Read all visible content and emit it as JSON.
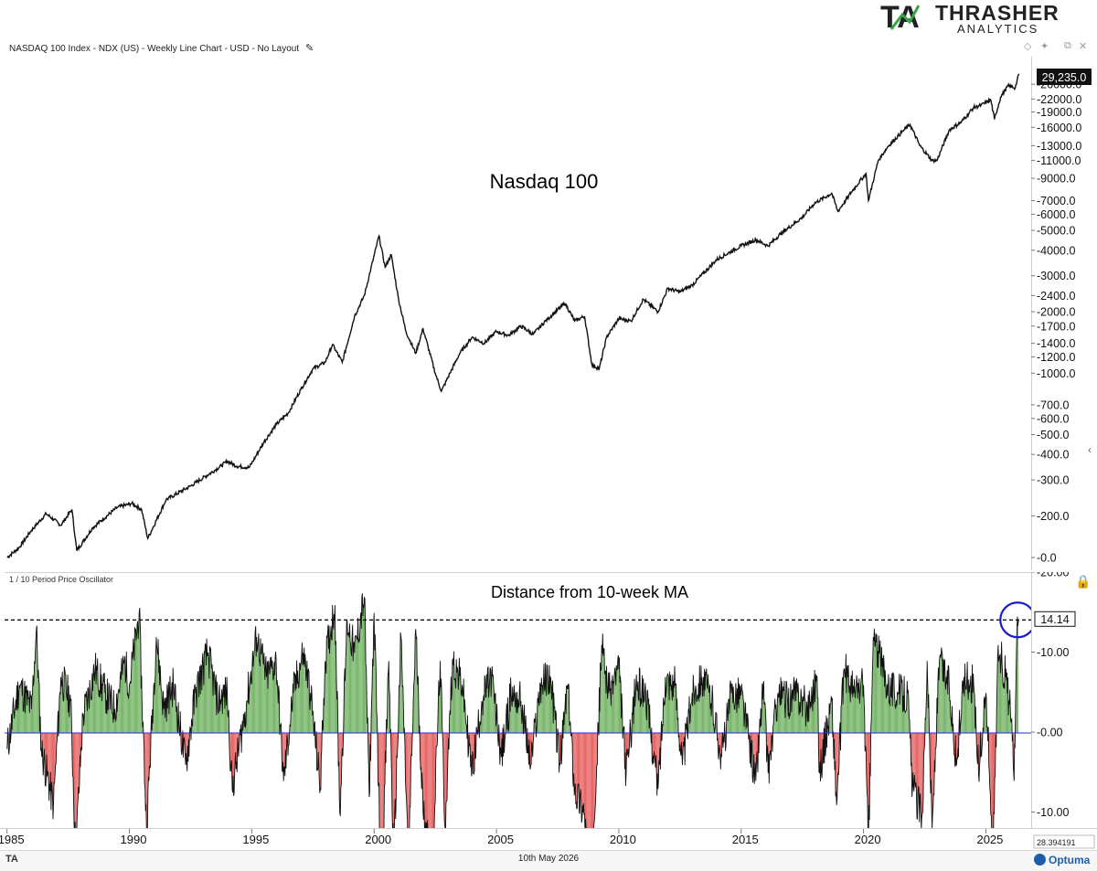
{
  "logo": {
    "mark": "TA",
    "name": "THRASHER",
    "sub": "ANALYTICS"
  },
  "header": {
    "title": "NASDAQ 100 Index - NDX (US) - Weekly Line Chart - USD - No Layout"
  },
  "osc_title": "1 / 10 Period Price Oscillator",
  "footer": {
    "date": "10th May 2026",
    "brand": "Optuma",
    "left_mark": "TA",
    "cursor_readout": "28.394191"
  },
  "chart_data": [
    {
      "type": "line",
      "title": "Nasdaq 100",
      "scale": "log",
      "last_value_label": "29,235.0",
      "y_tick_labels": [
        "26000.0",
        "22000.0",
        "19000.0",
        "16000.0",
        "13000.0",
        "11000.0",
        "9000.0",
        "7000.0",
        "6000.0",
        "5000.0",
        "4000.0",
        "3000.0",
        "2400.0",
        "2000.0",
        "1700.0",
        "1400.0",
        "1200.0",
        "1000.0",
        "700.0",
        "600.0",
        "500.0",
        "400.0",
        "300.0",
        "200.0",
        "-0.0"
      ],
      "x_tick_labels": [
        "1985",
        "1990",
        "1995",
        "2000",
        "2005",
        "2010",
        "2015",
        "2020",
        "2025"
      ],
      "series": [
        {
          "values": [
            [
              1985.0,
              125
            ],
            [
              1985.5,
              140
            ],
            [
              1986.0,
              170
            ],
            [
              1986.6,
              205
            ],
            [
              1987.2,
              180
            ],
            [
              1987.65,
              215
            ],
            [
              1987.85,
              135
            ],
            [
              1988.5,
              175
            ],
            [
              1989.5,
              220
            ],
            [
              1990.1,
              230
            ],
            [
              1990.5,
              215
            ],
            [
              1990.75,
              155
            ],
            [
              1991.5,
              240
            ],
            [
              1992.5,
              280
            ],
            [
              1993.5,
              335
            ],
            [
              1994.0,
              370
            ],
            [
              1994.4,
              350
            ],
            [
              1994.9,
              345
            ],
            [
              1995.5,
              460
            ],
            [
              1996.0,
              560
            ],
            [
              1996.5,
              640
            ],
            [
              1997.0,
              830
            ],
            [
              1997.5,
              1050
            ],
            [
              1998.0,
              1130
            ],
            [
              1998.3,
              1380
            ],
            [
              1998.7,
              1130
            ],
            [
              1999.2,
              1900
            ],
            [
              1999.6,
              2400
            ],
            [
              2000.2,
              4700
            ],
            [
              2000.45,
              3300
            ],
            [
              2000.7,
              3800
            ],
            [
              2001.0,
              2300
            ],
            [
              2001.3,
              1600
            ],
            [
              2001.7,
              1250
            ],
            [
              2002.0,
              1650
            ],
            [
              2002.5,
              1000
            ],
            [
              2002.75,
              815
            ],
            [
              2003.1,
              1000
            ],
            [
              2003.5,
              1250
            ],
            [
              2004.0,
              1500
            ],
            [
              2004.5,
              1400
            ],
            [
              2005.0,
              1600
            ],
            [
              2005.5,
              1530
            ],
            [
              2006.0,
              1700
            ],
            [
              2006.5,
              1550
            ],
            [
              2007.0,
              1800
            ],
            [
              2007.8,
              2200
            ],
            [
              2008.2,
              1800
            ],
            [
              2008.6,
              1900
            ],
            [
              2008.9,
              1100
            ],
            [
              2009.2,
              1050
            ],
            [
              2009.5,
              1500
            ],
            [
              2010.0,
              1850
            ],
            [
              2010.5,
              1800
            ],
            [
              2011.0,
              2300
            ],
            [
              2011.6,
              2000
            ],
            [
              2012.0,
              2600
            ],
            [
              2012.5,
              2500
            ],
            [
              2013.0,
              2700
            ],
            [
              2014.0,
              3600
            ],
            [
              2015.0,
              4200
            ],
            [
              2015.6,
              4500
            ],
            [
              2016.1,
              4200
            ],
            [
              2016.6,
              4800
            ],
            [
              2017.5,
              5800
            ],
            [
              2018.0,
              6800
            ],
            [
              2018.7,
              7600
            ],
            [
              2018.95,
              6200
            ],
            [
              2019.5,
              7700
            ],
            [
              2020.1,
              9500
            ],
            [
              2020.2,
              7000
            ],
            [
              2020.6,
              11000
            ],
            [
              2021.0,
              12900
            ],
            [
              2021.6,
              15300
            ],
            [
              2021.9,
              16500
            ],
            [
              2022.3,
              13000
            ],
            [
              2022.8,
              11000
            ],
            [
              2023.0,
              11000
            ],
            [
              2023.5,
              15500
            ],
            [
              2024.0,
              17000
            ],
            [
              2024.5,
              20000
            ],
            [
              2024.8,
              20500
            ],
            [
              2025.2,
              21800
            ],
            [
              2025.35,
              17500
            ],
            [
              2025.6,
              22500
            ],
            [
              2025.9,
              25500
            ],
            [
              2026.2,
              25000
            ],
            [
              2026.35,
              29235
            ]
          ]
        }
      ]
    },
    {
      "type": "area",
      "title": "Distance from 10-week MA",
      "ylim": [
        -12,
        20
      ],
      "reference_line": {
        "value": 14.14,
        "label": "14.14",
        "style": "dashed"
      },
      "zero_line": {
        "value": 0.0,
        "color": "#1f2fd6"
      },
      "y_tick_labels": [
        "20.00",
        "10.00",
        "0.00",
        "-10.00"
      ],
      "highlight": {
        "x": 2026.3,
        "y": 14.14,
        "shape": "circle",
        "color": "#1b1bcc"
      },
      "series": [
        {
          "positive_color": "#5fa84f",
          "negative_color": "#e34949",
          "values": [
            [
              1985.0,
              -2
            ],
            [
              1985.5,
              6
            ],
            [
              1986.0,
              3
            ],
            [
              1986.2,
              13
            ],
            [
              1986.4,
              -2
            ],
            [
              1986.9,
              -9
            ],
            [
              1987.2,
              7
            ],
            [
              1987.6,
              4
            ],
            [
              1987.8,
              -15
            ],
            [
              1988.1,
              2
            ],
            [
              1988.6,
              8
            ],
            [
              1989.0,
              5
            ],
            [
              1989.4,
              3
            ],
            [
              1989.8,
              9
            ],
            [
              1990.0,
              6
            ],
            [
              1990.4,
              15
            ],
            [
              1990.7,
              -12
            ],
            [
              1991.1,
              12
            ],
            [
              1991.4,
              3
            ],
            [
              1991.8,
              6
            ],
            [
              1992.3,
              -4
            ],
            [
              1992.7,
              5
            ],
            [
              1993.2,
              10
            ],
            [
              1993.6,
              4
            ],
            [
              1994.0,
              5
            ],
            [
              1994.2,
              -7
            ],
            [
              1994.8,
              4
            ],
            [
              1995.2,
              12
            ],
            [
              1995.6,
              7
            ],
            [
              1996.0,
              9
            ],
            [
              1996.3,
              -6
            ],
            [
              1996.7,
              5
            ],
            [
              1997.1,
              10
            ],
            [
              1997.4,
              5
            ],
            [
              1997.8,
              -7
            ],
            [
              1998.0,
              9
            ],
            [
              1998.4,
              16
            ],
            [
              1998.6,
              -10
            ],
            [
              1998.9,
              14
            ],
            [
              1999.2,
              10
            ],
            [
              1999.6,
              17
            ],
            [
              1999.8,
              -8
            ],
            [
              2000.0,
              15
            ],
            [
              2000.3,
              -20
            ],
            [
              2000.6,
              9
            ],
            [
              2000.8,
              -16
            ],
            [
              2001.1,
              12
            ],
            [
              2001.4,
              -16
            ],
            [
              2001.7,
              13
            ],
            [
              2002.0,
              -10
            ],
            [
              2002.4,
              -15
            ],
            [
              2002.7,
              9
            ],
            [
              2002.9,
              -12
            ],
            [
              2003.2,
              9
            ],
            [
              2003.6,
              6
            ],
            [
              2004.0,
              -5
            ],
            [
              2004.4,
              4
            ],
            [
              2004.8,
              7
            ],
            [
              2005.2,
              -3
            ],
            [
              2005.6,
              5
            ],
            [
              2006.0,
              4
            ],
            [
              2006.4,
              -4
            ],
            [
              2006.8,
              6
            ],
            [
              2007.2,
              7
            ],
            [
              2007.6,
              -4
            ],
            [
              2007.9,
              6
            ],
            [
              2008.2,
              -7
            ],
            [
              2008.6,
              -10
            ],
            [
              2008.8,
              -18
            ],
            [
              2009.1,
              -4
            ],
            [
              2009.3,
              11
            ],
            [
              2009.6,
              5
            ],
            [
              2010.0,
              8
            ],
            [
              2010.3,
              -5
            ],
            [
              2010.7,
              6
            ],
            [
              2011.1,
              5
            ],
            [
              2011.6,
              -7
            ],
            [
              2011.9,
              7
            ],
            [
              2012.3,
              6
            ],
            [
              2012.6,
              -4
            ],
            [
              2013.0,
              5
            ],
            [
              2013.4,
              7
            ],
            [
              2013.8,
              4
            ],
            [
              2014.2,
              -3
            ],
            [
              2014.6,
              5
            ],
            [
              2015.0,
              5
            ],
            [
              2015.6,
              -6
            ],
            [
              2015.9,
              6
            ],
            [
              2016.1,
              -5
            ],
            [
              2016.5,
              5
            ],
            [
              2016.9,
              4
            ],
            [
              2017.3,
              5
            ],
            [
              2017.7,
              3
            ],
            [
              2018.1,
              7
            ],
            [
              2018.2,
              -5
            ],
            [
              2018.7,
              4
            ],
            [
              2018.9,
              -9
            ],
            [
              2019.2,
              8
            ],
            [
              2019.6,
              5
            ],
            [
              2020.0,
              6
            ],
            [
              2020.2,
              -14
            ],
            [
              2020.4,
              12
            ],
            [
              2020.7,
              9
            ],
            [
              2021.0,
              6
            ],
            [
              2021.4,
              5
            ],
            [
              2021.8,
              5
            ],
            [
              2022.0,
              -7
            ],
            [
              2022.4,
              -10
            ],
            [
              2022.6,
              9
            ],
            [
              2022.8,
              -12
            ],
            [
              2023.1,
              9
            ],
            [
              2023.5,
              6
            ],
            [
              2023.8,
              -4
            ],
            [
              2024.1,
              7
            ],
            [
              2024.5,
              6
            ],
            [
              2024.7,
              -5
            ],
            [
              2025.0,
              5
            ],
            [
              2025.3,
              -15
            ],
            [
              2025.5,
              11
            ],
            [
              2025.8,
              7
            ],
            [
              2026.0,
              3
            ],
            [
              2026.15,
              -6
            ],
            [
              2026.25,
              10
            ],
            [
              2026.33,
              14.14
            ]
          ]
        }
      ]
    }
  ]
}
